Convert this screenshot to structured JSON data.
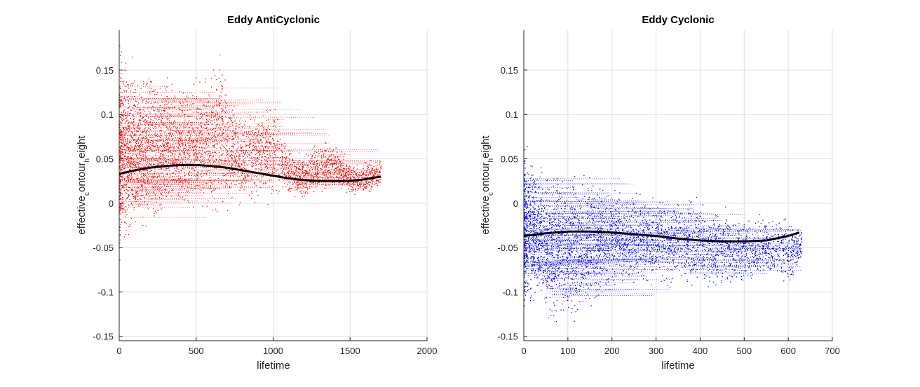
{
  "colors": {
    "anticyclonic_scatter": "#ff0000",
    "cyclonic_scatter": "#0000ff",
    "trend_line": "#000000",
    "grid": "#dfdfdf",
    "axis": "#262626"
  },
  "chart_data": [
    {
      "type": "scatter",
      "title": "Eddy AntiCyclonic",
      "xlabel": "lifetime",
      "ylabel": {
        "main": "effective",
        "sub1": "c",
        "mid": "ontour",
        "sub2": "h",
        "end": "eight"
      },
      "xlim": [
        0,
        2000
      ],
      "ylim": [
        -0.155,
        0.195
      ],
      "xticks": [
        0,
        500,
        1000,
        1500,
        2000
      ],
      "xtick_labels": [
        "0",
        "500",
        "1000",
        "1500",
        "2000"
      ],
      "yticks": [
        -0.15,
        -0.1,
        -0.05,
        0,
        0.05,
        0.1,
        0.15
      ],
      "ytick_labels": [
        "-0.15",
        "-0.1",
        "-0.05",
        "0",
        "0.05",
        "0.1",
        "0.15"
      ],
      "grid": true,
      "series": [
        {
          "kind": "scatter",
          "color": "#ff0000",
          "x_range": [
            0,
            1700
          ],
          "envelope": {
            "x": [
              0,
              20,
              50,
              100,
              200,
              300,
              400,
              500,
              600,
              650,
              700,
              800,
              900,
              1000,
              1100,
              1200,
              1300,
              1400,
              1500,
              1600,
              1700
            ],
            "upper": [
              0.19,
              0.18,
              0.17,
              0.16,
              0.16,
              0.15,
              0.145,
              0.15,
              0.15,
              0.19,
              0.14,
              0.1,
              0.13,
              0.115,
              0.07,
              0.06,
              0.075,
              0.07,
              0.05,
              0.05,
              0.055
            ],
            "lower": [
              -0.08,
              -0.07,
              -0.055,
              -0.045,
              -0.04,
              -0.025,
              -0.02,
              -0.015,
              -0.015,
              -0.02,
              -0.01,
              -0.005,
              -0.005,
              0.0,
              0.005,
              0.0,
              0.01,
              0.015,
              0.005,
              0.005,
              0.015
            ]
          }
        },
        {
          "kind": "line",
          "color": "#000000",
          "x": [
            0,
            100,
            200,
            300,
            400,
            500,
            600,
            700,
            800,
            900,
            1000,
            1100,
            1200,
            1300,
            1400,
            1500,
            1600,
            1700
          ],
          "y": [
            0.033,
            0.037,
            0.04,
            0.042,
            0.043,
            0.043,
            0.042,
            0.04,
            0.037,
            0.034,
            0.031,
            0.028,
            0.026,
            0.025,
            0.025,
            0.025,
            0.027,
            0.03
          ]
        }
      ]
    },
    {
      "type": "scatter",
      "title": "Eddy Cyclonic",
      "xlabel": "lifetime",
      "ylabel": {
        "main": "effective",
        "sub1": "c",
        "mid": "ontour",
        "sub2": "h",
        "end": "eight"
      },
      "xlim": [
        0,
        700
      ],
      "ylim": [
        -0.155,
        0.195
      ],
      "xticks": [
        0,
        100,
        200,
        300,
        400,
        500,
        600,
        700
      ],
      "xtick_labels": [
        "0",
        "100",
        "200",
        "300",
        "400",
        "500",
        "600",
        "700"
      ],
      "yticks": [
        -0.15,
        -0.1,
        -0.05,
        0,
        0.05,
        0.1,
        0.15
      ],
      "ytick_labels": [
        "-0.15",
        "-0.1",
        "-0.05",
        "0",
        "0.05",
        "0.1",
        "0.15"
      ],
      "grid": true,
      "series": [
        {
          "kind": "scatter",
          "color": "#0000ff",
          "x_range": [
            0,
            630
          ],
          "envelope": {
            "x": [
              0,
              10,
              30,
              60,
              100,
              150,
              200,
              250,
              300,
              350,
              400,
              450,
              500,
              550,
              600,
              630
            ],
            "upper": [
              0.08,
              0.065,
              0.05,
              0.045,
              0.04,
              0.035,
              0.03,
              0.02,
              0.015,
              0.015,
              0.01,
              0.005,
              -0.01,
              -0.005,
              -0.01,
              -0.025
            ],
            "lower": [
              -0.14,
              -0.13,
              -0.12,
              -0.15,
              -0.14,
              -0.12,
              -0.11,
              -0.1,
              -0.095,
              -0.1,
              -0.105,
              -0.1,
              -0.1,
              -0.085,
              -0.1,
              -0.07
            ]
          }
        },
        {
          "kind": "line",
          "color": "#000000",
          "x": [
            0,
            50,
            100,
            150,
            200,
            250,
            300,
            350,
            400,
            450,
            500,
            550,
            600,
            625
          ],
          "y": [
            -0.037,
            -0.034,
            -0.032,
            -0.032,
            -0.033,
            -0.035,
            -0.037,
            -0.04,
            -0.042,
            -0.043,
            -0.043,
            -0.042,
            -0.037,
            -0.033
          ]
        }
      ]
    }
  ]
}
